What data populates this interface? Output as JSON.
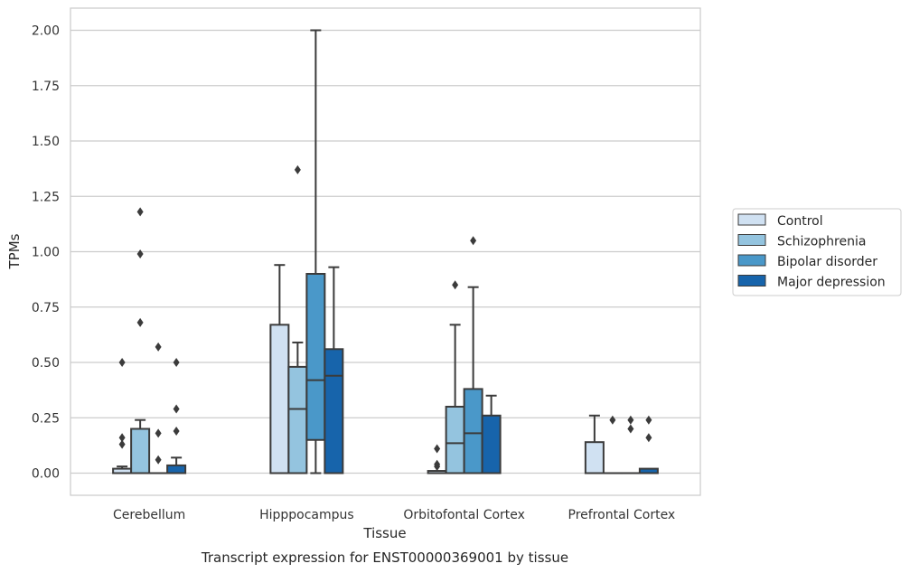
{
  "chart_data": {
    "type": "box",
    "categories": [
      "Cerebellum",
      "Hipppocampus",
      "Orbitofontal Cortex",
      "Prefrontal Cortex"
    ],
    "xlabel": "Tissue",
    "ylabel": "TPMs",
    "caption": "Transcript expression for ENST00000369001 by tissue",
    "ylim": [
      -0.1,
      2.1
    ],
    "yticks": [
      "0.00",
      "0.25",
      "0.50",
      "0.75",
      "1.00",
      "1.25",
      "1.50",
      "1.75",
      "2.00"
    ],
    "grid": true,
    "legend_position": "right",
    "series": [
      {
        "name": "Control",
        "color": "#d0e1f2"
      },
      {
        "name": "Schizophrenia",
        "color": "#94c4df"
      },
      {
        "name": "Bipolar disorder",
        "color": "#4a98c9"
      },
      {
        "name": "Major depression",
        "color": "#1764ab"
      }
    ],
    "boxes": [
      {
        "category": "Cerebellum",
        "series": "Control",
        "whisker_low": 0.0,
        "q1": 0.0,
        "median": 0.0,
        "q3": 0.02,
        "whisker_high": 0.03,
        "outliers": [
          0.5,
          0.16,
          0.13
        ]
      },
      {
        "category": "Cerebellum",
        "series": "Schizophrenia",
        "whisker_low": 0.0,
        "q1": 0.0,
        "median": 0.0,
        "q3": 0.2,
        "whisker_high": 0.24,
        "outliers": [
          1.18,
          0.99,
          0.68
        ]
      },
      {
        "category": "Cerebellum",
        "series": "Bipolar disorder",
        "whisker_low": 0.0,
        "q1": 0.0,
        "median": 0.0,
        "q3": 0.0,
        "whisker_high": 0.0,
        "outliers": [
          0.57,
          0.18,
          0.06
        ]
      },
      {
        "category": "Cerebellum",
        "series": "Major depression",
        "whisker_low": 0.0,
        "q1": 0.0,
        "median": 0.0,
        "q3": 0.035,
        "whisker_high": 0.07,
        "outliers": [
          0.5,
          0.29,
          0.19
        ]
      },
      {
        "category": "Hipppocampus",
        "series": "Control",
        "whisker_low": 0.0,
        "q1": 0.0,
        "median": 0.0,
        "q3": 0.67,
        "whisker_high": 0.94,
        "outliers": []
      },
      {
        "category": "Hipppocampus",
        "series": "Schizophrenia",
        "whisker_low": 0.0,
        "q1": 0.0,
        "median": 0.29,
        "q3": 0.48,
        "whisker_high": 0.59,
        "outliers": [
          1.37
        ]
      },
      {
        "category": "Hipppocampus",
        "series": "Bipolar disorder",
        "whisker_low": 0.0,
        "q1": 0.15,
        "median": 0.42,
        "q3": 0.9,
        "whisker_high": 2.0,
        "outliers": []
      },
      {
        "category": "Hipppocampus",
        "series": "Major depression",
        "whisker_low": 0.0,
        "q1": 0.0,
        "median": 0.44,
        "q3": 0.56,
        "whisker_high": 0.93,
        "outliers": []
      },
      {
        "category": "Orbitofontal Cortex",
        "series": "Control",
        "whisker_low": 0.0,
        "q1": 0.0,
        "median": 0.0,
        "q3": 0.01,
        "whisker_high": 0.01,
        "outliers": [
          0.11,
          0.04,
          0.03
        ]
      },
      {
        "category": "Orbitofontal Cortex",
        "series": "Schizophrenia",
        "whisker_low": 0.0,
        "q1": 0.0,
        "median": 0.135,
        "q3": 0.3,
        "whisker_high": 0.67,
        "outliers": [
          0.85
        ]
      },
      {
        "category": "Orbitofontal Cortex",
        "series": "Bipolar disorder",
        "whisker_low": 0.0,
        "q1": 0.0,
        "median": 0.18,
        "q3": 0.38,
        "whisker_high": 0.84,
        "outliers": [
          1.05
        ]
      },
      {
        "category": "Orbitofontal Cortex",
        "series": "Major depression",
        "whisker_low": 0.0,
        "q1": 0.0,
        "median": 0.0,
        "q3": 0.26,
        "whisker_high": 0.35,
        "outliers": []
      },
      {
        "category": "Prefrontal Cortex",
        "series": "Control",
        "whisker_low": 0.0,
        "q1": 0.0,
        "median": 0.0,
        "q3": 0.14,
        "whisker_high": 0.26,
        "outliers": []
      },
      {
        "category": "Prefrontal Cortex",
        "series": "Schizophrenia",
        "whisker_low": 0.0,
        "q1": 0.0,
        "median": 0.0,
        "q3": 0.0,
        "whisker_high": 0.0,
        "outliers": [
          0.24
        ]
      },
      {
        "category": "Prefrontal Cortex",
        "series": "Bipolar disorder",
        "whisker_low": 0.0,
        "q1": 0.0,
        "median": 0.0,
        "q3": 0.0,
        "whisker_high": 0.0,
        "outliers": [
          0.24,
          0.2
        ]
      },
      {
        "category": "Prefrontal Cortex",
        "series": "Major depression",
        "whisker_low": 0.0,
        "q1": 0.0,
        "median": 0.0,
        "q3": 0.02,
        "whisker_high": 0.02,
        "outliers": [
          0.24,
          0.16
        ]
      }
    ]
  }
}
